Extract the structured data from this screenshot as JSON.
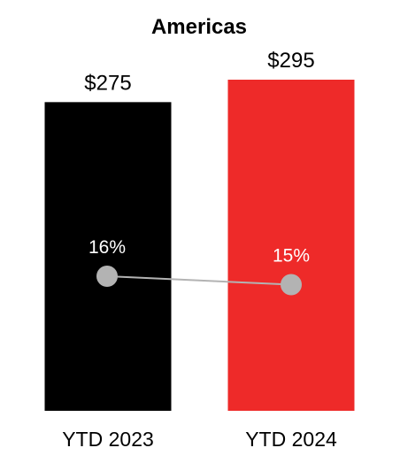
{
  "chart_data": {
    "type": "bar",
    "title": "Americas",
    "categories": [
      "YTD 2023",
      "YTD 2024"
    ],
    "series": [
      {
        "values": [
          275,
          295
        ],
        "value_labels": [
          "$275",
          "$295"
        ],
        "colors": [
          "#000000",
          "#ee2a29"
        ]
      },
      {
        "type": "line",
        "values": [
          16,
          15
        ],
        "value_labels": [
          "16%",
          "15%"
        ],
        "color": "#b3b3b3",
        "marker_color": "#b3b3b3"
      }
    ],
    "xlabel": "",
    "ylabel": "",
    "ylim": [
      0,
      300
    ],
    "line_ylim": [
      0,
      30
    ],
    "grid": false,
    "legend": "none"
  }
}
